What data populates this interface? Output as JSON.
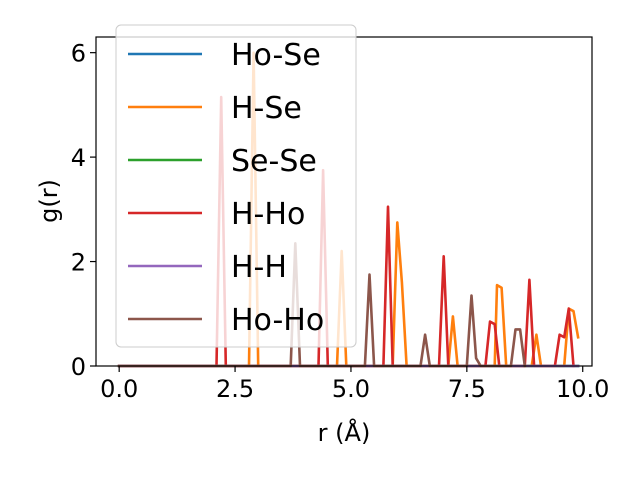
{
  "chart_data": {
    "type": "line",
    "xlabel": "r (Å)",
    "ylabel": "g(r)",
    "xlim": [
      -0.5,
      10.2
    ],
    "ylim": [
      0,
      6.3
    ],
    "xticks": [
      0.0,
      2.5,
      5.0,
      7.5,
      10.0
    ],
    "xtick_labels": [
      "0.0",
      "2.5",
      "5.0",
      "7.5",
      "10.0"
    ],
    "yticks": [
      0,
      2,
      4,
      6
    ],
    "ytick_labels": [
      "0",
      "2",
      "4",
      "6"
    ],
    "grid": false,
    "legend_position": "upper-left",
    "series": [
      {
        "name": "Ho-Se",
        "color": "#1f77b4",
        "points": [
          [
            0.0,
            0
          ],
          [
            9.9,
            0
          ]
        ]
      },
      {
        "name": "H-Se",
        "color": "#ff7f0e",
        "points": [
          [
            0.0,
            0
          ],
          [
            2.8,
            0
          ],
          [
            2.9,
            6.0
          ],
          [
            3.0,
            0
          ],
          [
            4.7,
            0
          ],
          [
            4.8,
            2.2
          ],
          [
            4.9,
            0
          ],
          [
            5.9,
            0
          ],
          [
            6.0,
            2.75
          ],
          [
            6.1,
            1.6
          ],
          [
            6.2,
            0
          ],
          [
            7.1,
            0
          ],
          [
            7.2,
            0.95
          ],
          [
            7.3,
            0
          ],
          [
            8.1,
            0
          ],
          [
            8.15,
            1.55
          ],
          [
            8.25,
            1.5
          ],
          [
            8.35,
            0
          ],
          [
            8.9,
            0
          ],
          [
            9.0,
            0.6
          ],
          [
            9.1,
            0
          ],
          [
            9.6,
            0
          ],
          [
            9.7,
            1.1
          ],
          [
            9.8,
            1.05
          ],
          [
            9.9,
            0.55
          ]
        ]
      },
      {
        "name": "Se-Se",
        "color": "#2ca02c",
        "points": [
          [
            0.0,
            0
          ],
          [
            9.9,
            0
          ]
        ]
      },
      {
        "name": "H-Ho",
        "color": "#d62728",
        "points": [
          [
            0.0,
            0
          ],
          [
            2.1,
            0
          ],
          [
            2.2,
            5.15
          ],
          [
            2.3,
            0
          ],
          [
            4.3,
            0
          ],
          [
            4.4,
            3.75
          ],
          [
            4.5,
            0
          ],
          [
            5.7,
            0
          ],
          [
            5.8,
            3.05
          ],
          [
            5.9,
            0
          ],
          [
            6.9,
            0
          ],
          [
            7.0,
            2.1
          ],
          [
            7.1,
            0
          ],
          [
            7.9,
            0
          ],
          [
            8.0,
            0.85
          ],
          [
            8.1,
            0.8
          ],
          [
            8.2,
            0
          ],
          [
            8.75,
            0
          ],
          [
            8.85,
            1.65
          ],
          [
            8.95,
            0
          ],
          [
            9.4,
            0
          ],
          [
            9.5,
            0.6
          ],
          [
            9.6,
            0.55
          ],
          [
            9.7,
            1.1
          ],
          [
            9.8,
            0
          ]
        ]
      },
      {
        "name": "H-H",
        "color": "#9467bd",
        "points": [
          [
            0.0,
            0
          ],
          [
            9.9,
            0
          ]
        ]
      },
      {
        "name": "Ho-Ho",
        "color": "#8c564b",
        "points": [
          [
            0.0,
            0
          ],
          [
            3.7,
            0
          ],
          [
            3.8,
            2.35
          ],
          [
            3.9,
            0
          ],
          [
            5.3,
            0
          ],
          [
            5.4,
            1.75
          ],
          [
            5.5,
            0
          ],
          [
            6.5,
            0
          ],
          [
            6.6,
            0.6
          ],
          [
            6.7,
            0
          ],
          [
            7.5,
            0
          ],
          [
            7.6,
            1.35
          ],
          [
            7.7,
            0.15
          ],
          [
            7.8,
            0
          ],
          [
            8.45,
            0
          ],
          [
            8.55,
            0.7
          ],
          [
            8.65,
            0.7
          ],
          [
            8.75,
            0
          ]
        ]
      }
    ]
  }
}
